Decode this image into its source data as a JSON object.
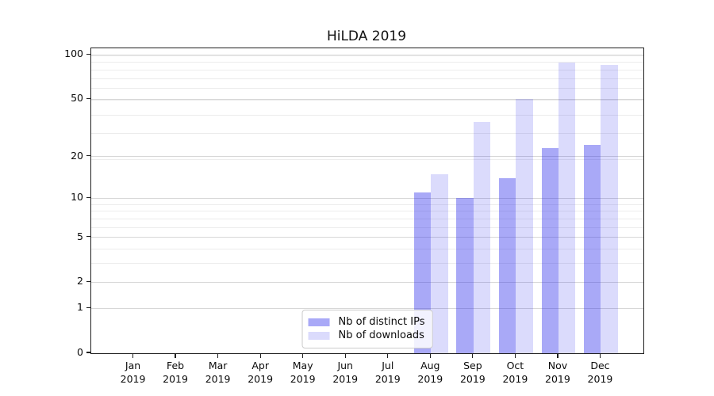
{
  "chart_data": {
    "type": "bar",
    "title": "HiLDA 2019",
    "categories": [
      "Jan",
      "Feb",
      "Mar",
      "Apr",
      "May",
      "Jun",
      "Jul",
      "Aug",
      "Sep",
      "Oct",
      "Nov",
      "Dec"
    ],
    "year_label": "2019",
    "series": [
      {
        "name": "Nb of distinct IPs",
        "color": "rgba(40,40,235,0.40)",
        "values": [
          0,
          0,
          0,
          0,
          0,
          0,
          0,
          11,
          10,
          14,
          23,
          24
        ]
      },
      {
        "name": "Nb of downloads",
        "color": "rgba(40,40,235,0.17)",
        "values": [
          0,
          0,
          0,
          0,
          0,
          0,
          0,
          15,
          35,
          50,
          89,
          86
        ]
      }
    ],
    "yscale": "log1p",
    "yticks": [
      0,
      1,
      2,
      5,
      10,
      20,
      50,
      100
    ],
    "ylim": [
      0,
      111
    ],
    "grid": {
      "orientation": "horizontal",
      "major": [
        1,
        2,
        5,
        10,
        20,
        50,
        100
      ],
      "minor": [
        3,
        4,
        6,
        7,
        8,
        9,
        19,
        29,
        39,
        49,
        59,
        69,
        79,
        89,
        99
      ]
    },
    "legend_location": "lower center",
    "colors": {
      "spine": "#1f1f1f",
      "grid_major": "#d7d7d7",
      "grid_minor": "#ececec",
      "text": "#0a0a0a"
    }
  }
}
